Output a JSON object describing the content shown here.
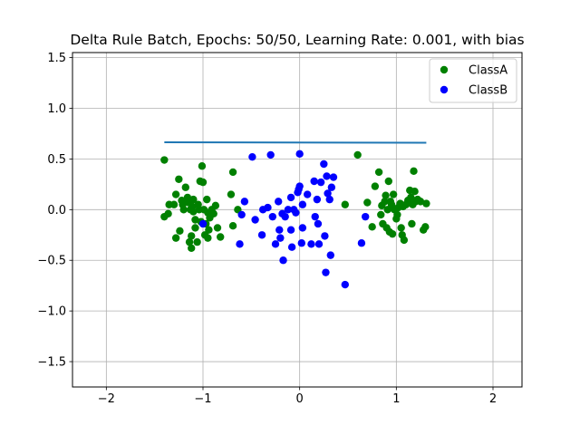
{
  "chart_data": {
    "type": "scatter",
    "title": "Delta Rule Batch, Epochs: 50/50, Learning Rate: 0.001, with bias",
    "xlabel": "",
    "ylabel": "",
    "xlim": [
      -2.35,
      2.3
    ],
    "ylim": [
      -1.75,
      1.55
    ],
    "grid": true,
    "legend_position": "top-right",
    "x_ticks": [
      -2,
      -1,
      0,
      1,
      2
    ],
    "x_tick_labels": [
      "−2",
      "−1",
      "0",
      "1",
      "2"
    ],
    "y_ticks": [
      -1.5,
      -1.0,
      -0.5,
      0.0,
      0.5,
      1.0,
      1.5
    ],
    "y_tick_labels": [
      "−1.5",
      "−1.0",
      "−0.5",
      "0.0",
      "0.5",
      "1.0",
      "1.5"
    ],
    "series": [
      {
        "name": "ClassA",
        "color": "#008000",
        "points": [
          [
            -1.4,
            0.49
          ],
          [
            -1.4,
            -0.07
          ],
          [
            -1.35,
            0.05
          ],
          [
            -1.36,
            -0.04
          ],
          [
            -1.3,
            0.05
          ],
          [
            -1.28,
            0.15
          ],
          [
            -1.28,
            -0.28
          ],
          [
            -1.25,
            0.3
          ],
          [
            -1.24,
            -0.21
          ],
          [
            -1.22,
            0.09
          ],
          [
            -1.21,
            0.05
          ],
          [
            -1.2,
            0.0
          ],
          [
            -1.18,
            0.22
          ],
          [
            -1.16,
            0.12
          ],
          [
            -1.15,
            0.07
          ],
          [
            -1.14,
            -0.32
          ],
          [
            -1.13,
            0.0
          ],
          [
            -1.12,
            -0.38
          ],
          [
            -1.12,
            -0.26
          ],
          [
            -1.11,
            0.03
          ],
          [
            -1.1,
            0.1
          ],
          [
            -1.1,
            -0.02
          ],
          [
            -1.08,
            -0.1
          ],
          [
            -1.08,
            -0.18
          ],
          [
            -1.06,
            -0.32
          ],
          [
            -1.05,
            0.05
          ],
          [
            -1.04,
            0.0
          ],
          [
            -1.03,
            0.28
          ],
          [
            -1.02,
            -0.12
          ],
          [
            -1.01,
            0.43
          ],
          [
            -1.0,
            0.27
          ],
          [
            -0.99,
            0.0
          ],
          [
            -0.98,
            -0.25
          ],
          [
            -0.97,
            -0.14
          ],
          [
            -0.96,
            0.1
          ],
          [
            -0.95,
            -0.03
          ],
          [
            -0.95,
            -0.28
          ],
          [
            -0.94,
            -0.2
          ],
          [
            -0.93,
            -0.08
          ],
          [
            -0.91,
            0.0
          ],
          [
            -0.89,
            -0.04
          ],
          [
            -0.87,
            0.04
          ],
          [
            -0.85,
            -0.18
          ],
          [
            -0.82,
            -0.27
          ],
          [
            -0.71,
            0.15
          ],
          [
            -0.69,
            0.37
          ],
          [
            -0.69,
            -0.16
          ],
          [
            -0.64,
            0.0
          ],
          [
            0.47,
            0.05
          ],
          [
            0.6,
            0.54
          ],
          [
            0.7,
            0.07
          ],
          [
            0.75,
            -0.17
          ],
          [
            0.78,
            0.23
          ],
          [
            0.82,
            0.37
          ],
          [
            0.84,
            -0.05
          ],
          [
            0.85,
            0.04
          ],
          [
            0.86,
            -0.14
          ],
          [
            0.88,
            0.08
          ],
          [
            0.89,
            0.14
          ],
          [
            0.9,
            -0.18
          ],
          [
            0.91,
            0.0
          ],
          [
            0.92,
            0.28
          ],
          [
            0.93,
            -0.22
          ],
          [
            0.94,
            0.08
          ],
          [
            0.95,
            0.05
          ],
          [
            0.96,
            -0.24
          ],
          [
            0.97,
            0.15
          ],
          [
            0.98,
            0.0
          ],
          [
            1.0,
            -0.09
          ],
          [
            1.01,
            -0.05
          ],
          [
            1.02,
            0.02
          ],
          [
            1.04,
            0.06
          ],
          [
            1.05,
            -0.18
          ],
          [
            1.06,
            -0.25
          ],
          [
            1.07,
            0.03
          ],
          [
            1.08,
            -0.3
          ],
          [
            1.1,
            0.05
          ],
          [
            1.12,
            0.09
          ],
          [
            1.14,
            0.19
          ],
          [
            1.15,
            0.12
          ],
          [
            1.16,
            -0.14
          ],
          [
            1.17,
            0.05
          ],
          [
            1.18,
            0.38
          ],
          [
            1.19,
            0.18
          ],
          [
            1.2,
            0.08
          ],
          [
            1.22,
            0.1
          ],
          [
            1.25,
            0.08
          ],
          [
            1.28,
            -0.2
          ],
          [
            1.3,
            -0.17
          ],
          [
            1.31,
            0.06
          ]
        ]
      },
      {
        "name": "ClassB",
        "color": "#0000ff",
        "points": [
          [
            -1.0,
            -0.14
          ],
          [
            -0.62,
            -0.34
          ],
          [
            -0.6,
            -0.05
          ],
          [
            -0.57,
            0.08
          ],
          [
            -0.49,
            0.52
          ],
          [
            -0.46,
            -0.1
          ],
          [
            -0.39,
            -0.25
          ],
          [
            -0.38,
            0.0
          ],
          [
            -0.33,
            0.02
          ],
          [
            -0.3,
            0.54
          ],
          [
            -0.28,
            -0.07
          ],
          [
            -0.25,
            -0.34
          ],
          [
            -0.22,
            0.08
          ],
          [
            -0.21,
            -0.2
          ],
          [
            -0.2,
            -0.28
          ],
          [
            -0.18,
            -0.04
          ],
          [
            -0.17,
            -0.5
          ],
          [
            -0.15,
            -0.07
          ],
          [
            -0.12,
            0.0
          ],
          [
            -0.09,
            -0.2
          ],
          [
            -0.09,
            0.12
          ],
          [
            -0.08,
            -0.37
          ],
          [
            -0.06,
            0.0
          ],
          [
            -0.04,
            -0.03
          ],
          [
            -0.02,
            0.17
          ],
          [
            -0.01,
            0.2
          ],
          [
            0.0,
            0.23
          ],
          [
            0.0,
            0.55
          ],
          [
            0.02,
            -0.33
          ],
          [
            0.03,
            -0.18
          ],
          [
            0.03,
            0.05
          ],
          [
            0.08,
            0.15
          ],
          [
            0.12,
            -0.34
          ],
          [
            0.15,
            0.28
          ],
          [
            0.16,
            -0.07
          ],
          [
            0.18,
            0.1
          ],
          [
            0.19,
            -0.14
          ],
          [
            0.2,
            -0.34
          ],
          [
            0.22,
            0.27
          ],
          [
            0.25,
            0.45
          ],
          [
            0.26,
            -0.26
          ],
          [
            0.27,
            -0.62
          ],
          [
            0.28,
            0.33
          ],
          [
            0.29,
            0.16
          ],
          [
            0.31,
            0.1
          ],
          [
            0.32,
            -0.45
          ],
          [
            0.33,
            0.22
          ],
          [
            0.35,
            0.32
          ],
          [
            0.47,
            -0.74
          ],
          [
            0.64,
            -0.33
          ],
          [
            0.68,
            -0.07
          ]
        ]
      }
    ],
    "decision_boundary": {
      "color": "#1f77b4",
      "x": [
        -1.4,
        1.31
      ],
      "y": [
        0.665,
        0.66
      ]
    }
  }
}
